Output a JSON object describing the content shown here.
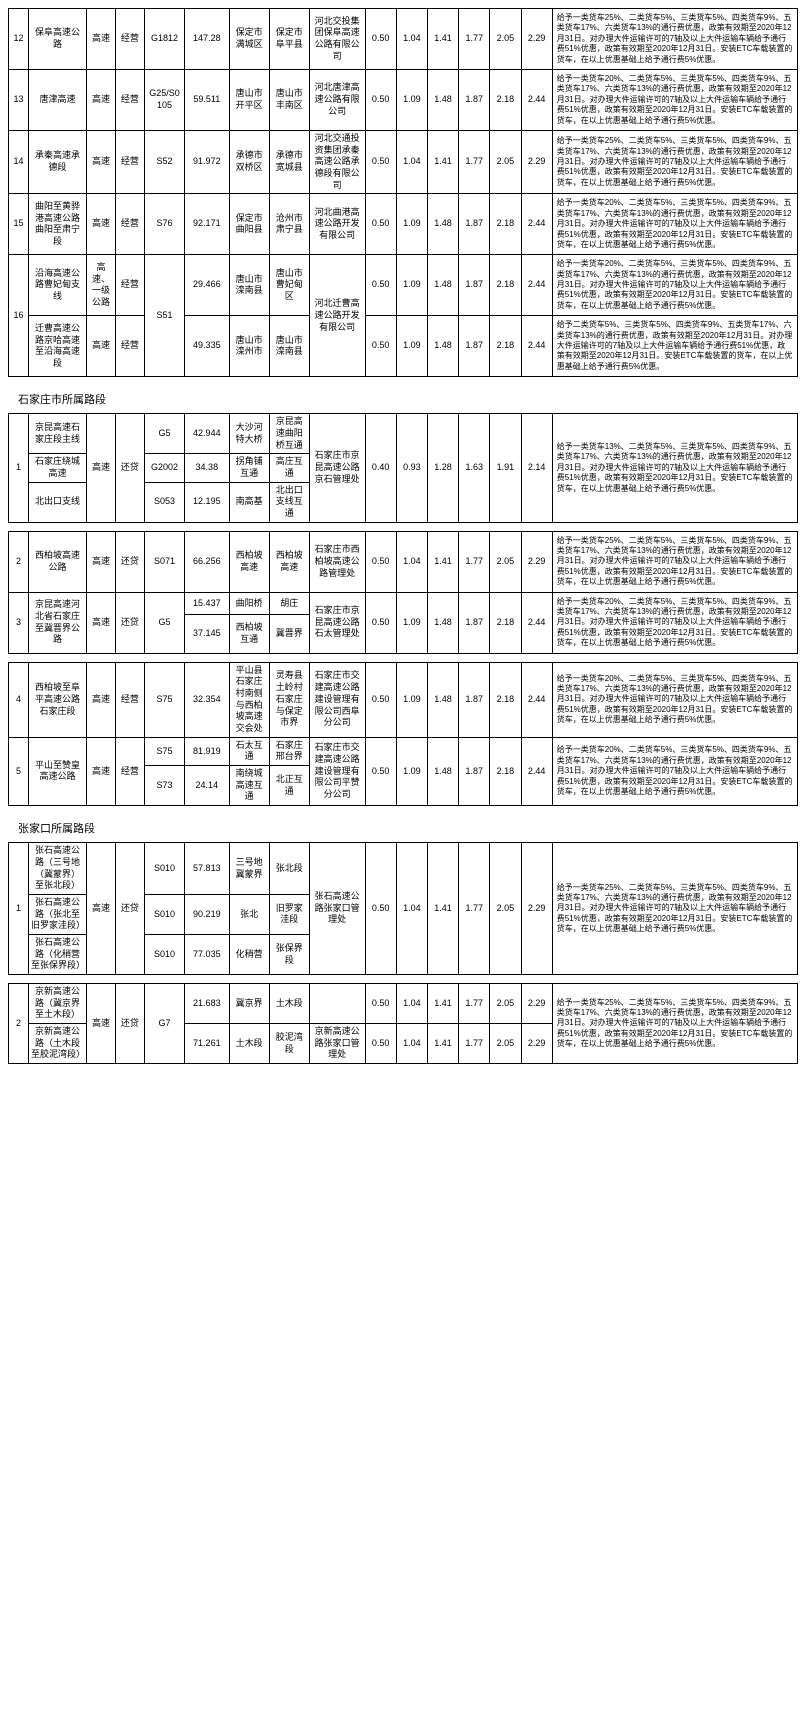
{
  "sections": [
    {
      "title": null,
      "rows": [
        {
          "idx": "12",
          "name": "保阜高速公路",
          "type": "高速",
          "op": "经营",
          "code": "G1812",
          "len": "147.28",
          "a": "保定市满城区",
          "b": "保定市阜平县",
          "owner": "河北交投集团保阜高速公路有限公司",
          "r": [
            "0.50",
            "1.04",
            "1.41",
            "1.77",
            "2.05",
            "2.29"
          ],
          "note": "给予一类货车25%、二类货车5%、三类货车5%、四类货车9%、五类货车17%、六类货车13%的通行费优惠，政策有效期至2020年12月31日。对办理大件运输许可的7轴及以上大件运输车辆给予通行费51%优惠，政策有效期至2020年12月31日。安装ETC车载装置的货车，在以上优惠基础上给予通行费5%优惠。"
        },
        {
          "idx": "13",
          "name": "唐津高速",
          "type": "高速",
          "op": "经营",
          "code": "G25/S0105",
          "len": "59.511",
          "a": "唐山市开平区",
          "b": "唐山市丰南区",
          "owner": "河北唐津高速公路有限公司",
          "r": [
            "0.50",
            "1.09",
            "1.48",
            "1.87",
            "2.18",
            "2.44"
          ],
          "note": "给予一类货车20%、二类货车5%、三类货车5%、四类货车9%、五类货车17%、六类货车13%的通行费优惠，政策有效期至2020年12月31日。对办理大件运输许可的7轴及以上大件运输车辆给予通行费51%优惠，政策有效期至2020年12月31日。安装ETC车载装置的货车，在以上优惠基础上给予通行费5%优惠。"
        },
        {
          "idx": "14",
          "name": "承秦高速承德段",
          "type": "高速",
          "op": "经营",
          "code": "S52",
          "len": "91.972",
          "a": "承德市双桥区",
          "b": "承德市宽城县",
          "owner": "河北交通投资集团承秦高速公路承德段有限公司",
          "r": [
            "0.50",
            "1.04",
            "1.41",
            "1.77",
            "2.05",
            "2.29"
          ],
          "note": "给予一类货车25%、二类货车5%、三类货车5%、四类货车9%、五类货车17%、六类货车13%的通行费优惠，政策有效期至2020年12月31日。对办理大件运输许可的7轴及以上大件运输车辆给予通行费51%优惠，政策有效期至2020年12月31日。安装ETC车载装置的货车，在以上优惠基础上给予通行费5%优惠。"
        },
        {
          "idx": "15",
          "name": "曲阳至黄骅港高速公路曲阳至肃宁段",
          "type": "高速",
          "op": "经营",
          "code": "S76",
          "len": "92.171",
          "a": "保定市曲阳县",
          "b": "沧州市肃宁县",
          "owner": "河北曲港高速公路开发有限公司",
          "r": [
            "0.50",
            "1.09",
            "1.48",
            "1.87",
            "2.18",
            "2.44"
          ],
          "note": "给予一类货车20%、二类货车5%、三类货车5%、四类货车9%、五类货车17%、六类货车13%的通行费优惠，政策有效期至2020年12月31日。对办理大件运输许可的7轴及以上大件运输车辆给予通行费51%优惠，政策有效期至2020年12月31日。安装ETC车载装置的货车，在以上优惠基础上给予通行费5%优惠。"
        }
      ],
      "merged16": {
        "idx": "16",
        "rows": [
          {
            "name": "沿海高速公路曹妃甸支线",
            "type": "高速、一级公路",
            "op": "经营",
            "code": "S51",
            "len": "29.466",
            "a": "唐山市滦南县",
            "b": "唐山市曹妃甸区",
            "owner": "河北迁曹高速公路开发有限公司",
            "r": [
              "0.50",
              "1.09",
              "1.48",
              "1.87",
              "2.18",
              "2.44"
            ],
            "note": "给予一类货车20%、二类货车5%、三类货车5%、四类货车9%、五类货车17%、六类货车13%的通行费优惠，政策有效期至2020年12月31日。对办理大件运输许可的7轴及以上大件运输车辆给予通行费51%优惠，政策有效期至2020年12月31日。安装ETC车载装置的货车，在以上优惠基础上给予通行费5%优惠。"
          },
          {
            "name": "迁曹高速公路京哈高速至沿海高速段",
            "type": "高速",
            "op": "经营",
            "len": "49.335",
            "a": "唐山市滦州市",
            "b": "唐山市滦南县",
            "r": [
              "0.50",
              "1.09",
              "1.48",
              "1.87",
              "2.18",
              "2.44"
            ],
            "note": "给予二类货车5%、三类货车5%、四类货车9%、五类货车17%、六类货车13%的通行费优惠，政策有效期至2020年12月31日。对办理大件运输许可的7轴及以上大件运输车辆给予通行费51%优惠，政策有效期至2020年12月31日。安装ETC车载装置的货车，在以上优惠基础上给予通行费5%优惠。"
          }
        ]
      }
    },
    {
      "title": "石家庄市所属路段",
      "sjz1": {
        "idx": "1",
        "type": "高速",
        "op": "还贷",
        "sub": [
          {
            "name": "京昆高速石家庄段主线",
            "code": "G5",
            "len": "42.944",
            "a": "大沙河特大桥",
            "b": "京昆高速曲阳桥互通"
          },
          {
            "name": "石家庄绕城高速",
            "code": "G2002",
            "len": "34.38",
            "a": "拐角铺互通",
            "b": "高庄互通"
          },
          {
            "name": "北出口支线",
            "code": "S053",
            "len": "12.195",
            "a": "南高基",
            "b": "北出口支线互通"
          }
        ],
        "owner": "石家庄市京昆高速公路京石管理处",
        "r": [
          "0.40",
          "0.93",
          "1.28",
          "1.63",
          "1.91",
          "2.14"
        ],
        "note": "给予一类货车13%、二类货车5%、三类货车5%、四类货车9%、五类货车17%、六类货车13%的通行费优惠，政策有效期至2020年12月31日。对办理大件运输许可的7轴及以上大件运输车辆给予通行费51%优惠，政策有效期至2020年12月31日。安装ETC车载装置的货车，在以上优惠基础上给予通行费5%优惠。"
      },
      "sjz2": {
        "idx": "2",
        "name": "西柏坡高速公路",
        "type": "高速",
        "op": "还贷",
        "code": "S071",
        "len": "66.256",
        "a": "西柏坡高速",
        "b": "西柏坡高速",
        "owner": "石家庄市西柏坡高速公路管理处",
        "r": [
          "0.50",
          "1.04",
          "1.41",
          "1.77",
          "2.05",
          "2.29"
        ],
        "note": "给予一类货车25%、二类货车5%、三类货车5%、四类货车9%、五类货车17%、六类货车13%的通行费优惠，政策有效期至2020年12月31日。对办理大件运输许可的7轴及以上大件运输车辆给予通行费51%优惠，政策有效期至2020年12月31日。安装ETC车载装置的货车，在以上优惠基础上给予通行费5%优惠。"
      },
      "sjz3": {
        "idx": "3",
        "name": "京昆高速河北省石家庄至冀晋界公路",
        "type": "高速",
        "op": "还贷",
        "code": "G5",
        "sub": [
          {
            "len": "15.437",
            "a": "曲阳桥",
            "b": "胡庄"
          },
          {
            "len": "37.145",
            "a": "西柏坡互通",
            "b": "冀晋界"
          }
        ],
        "owner": "石家庄市京昆高速公路石太管理处",
        "r": [
          "0.50",
          "1.09",
          "1.48",
          "1.87",
          "2.18",
          "2.44"
        ],
        "note": "给予一类货车20%、二类货车5%、三类货车5%、四类货车9%、五类货车17%、六类货车13%的通行费优惠，政策有效期至2020年12月31日。对办理大件运输许可的7轴及以上大件运输车辆给予通行费51%优惠，政策有效期至2020年12月31日。安装ETC车载装置的货车，在以上优惠基础上给予通行费5%优惠。"
      },
      "sjz4": {
        "idx": "4",
        "name": "西柏坡至阜平高速公路石家庄段",
        "type": "高速",
        "op": "经营",
        "code": "S75",
        "len": "32.354",
        "a": "平山县石家庄村南侧与西柏坡高速交会处",
        "b": "灵寿县土岭村石家庄与保定市界",
        "owner": "石家庄市交建高速公路建设管理有限公司西阜分公司",
        "r": [
          "0.50",
          "1.09",
          "1.48",
          "1.87",
          "2.18",
          "2.44"
        ],
        "note": "给予一类货车20%、二类货车5%、三类货车5%、四类货车9%、五类货车17%、六类货车13%的通行费优惠，政策有效期至2020年12月31日。对办理大件运输许可的7轴及以上大件运输车辆给予通行费51%优惠，政策有效期至2020年12月31日。安装ETC车载装置的货车，在以上优惠基础上给予通行费5%优惠。"
      },
      "sjz5": {
        "idx": "5",
        "name": "平山至赞皇高速公路",
        "type": "高速",
        "op": "经营",
        "sub": [
          {
            "code": "S75",
            "len": "81.919",
            "a": "石太互通",
            "b": "石家庄邢台界"
          },
          {
            "code": "S73",
            "len": "24.14",
            "a": "南绕城高速互通",
            "b": "北正互通"
          }
        ],
        "owner": "石家庄市交建高速公路建设管理有限公司平赞分公司",
        "r": [
          "0.50",
          "1.09",
          "1.48",
          "1.87",
          "2.18",
          "2.44"
        ],
        "note": "给予一类货车20%、二类货车5%、三类货车5%、四类货车9%、五类货车17%、六类货车13%的通行费优惠，政策有效期至2020年12月31日。对办理大件运输许可的7轴及以上大件运输车辆给予通行费51%优惠，政策有效期至2020年12月31日。安装ETC车载装置的货车，在以上优惠基础上给予通行费5%优惠。"
      }
    },
    {
      "title": "张家口所属路段",
      "zjk1": {
        "idx": "1",
        "type": "高速",
        "op": "还贷",
        "sub": [
          {
            "name": "张石高速公路（三号地（冀蒙界）至张北段）",
            "code": "S010",
            "len": "57.813",
            "a": "三号地冀蒙界",
            "b": "张北段"
          },
          {
            "name": "张石高速公路（张北至旧罗家洼段）",
            "code": "S010",
            "len": "90.219",
            "a": "张北",
            "b": "旧罗家洼段"
          },
          {
            "name": "张石高速公路（化稍营至张保界段）",
            "code": "S010",
            "len": "77.035",
            "a": "化稍营",
            "b": "张保界段"
          }
        ],
        "owner": "张石高速公路张家口管理处",
        "r": [
          "0.50",
          "1.04",
          "1.41",
          "1.77",
          "2.05",
          "2.29"
        ],
        "note": "给予一类货车25%、二类货车5%、三类货车5%、四类货车9%、五类货车17%、六类货车13%的通行费优惠，政策有效期至2020年12月31日。对办理大件运输许可的7轴及以上大件运输车辆给予通行费51%优惠，政策有效期至2020年12月31日。安装ETC车载装置的货车，在以上优惠基础上给予通行费5%优惠。"
      },
      "zjk2": {
        "idx": "2",
        "type": "高速",
        "op": "还贷",
        "code": "G7",
        "sub": [
          {
            "name": "京新高速公路（冀京界至土木段）",
            "len": "21.683",
            "a": "冀京界",
            "b": "土木段",
            "owner": "",
            "r": [
              "0.50",
              "1.04",
              "1.41",
              "1.77",
              "2.05",
              "2.29"
            ]
          },
          {
            "name": "京新高速公路（土木段至胶泥湾段）",
            "len": "71.261",
            "a": "土木段",
            "b": "胶泥湾段",
            "owner": "京新高速公路张家口管理处",
            "r": [
              "0.50",
              "1.04",
              "1.41",
              "1.77",
              "2.05",
              "2.29"
            ]
          }
        ],
        "note": "给予一类货车25%、二类货车5%、三类货车5%、四类货车9%、五类货车17%、六类货车13%的通行费优惠，政策有效期至2020年12月31日。对办理大件运输许可的7轴及以上大件运输车辆给予通行费51%优惠，政策有效期至2020年12月31日。安装ETC车载装置的货车，在以上优惠基础上给予通行费5%优惠。"
      }
    }
  ]
}
